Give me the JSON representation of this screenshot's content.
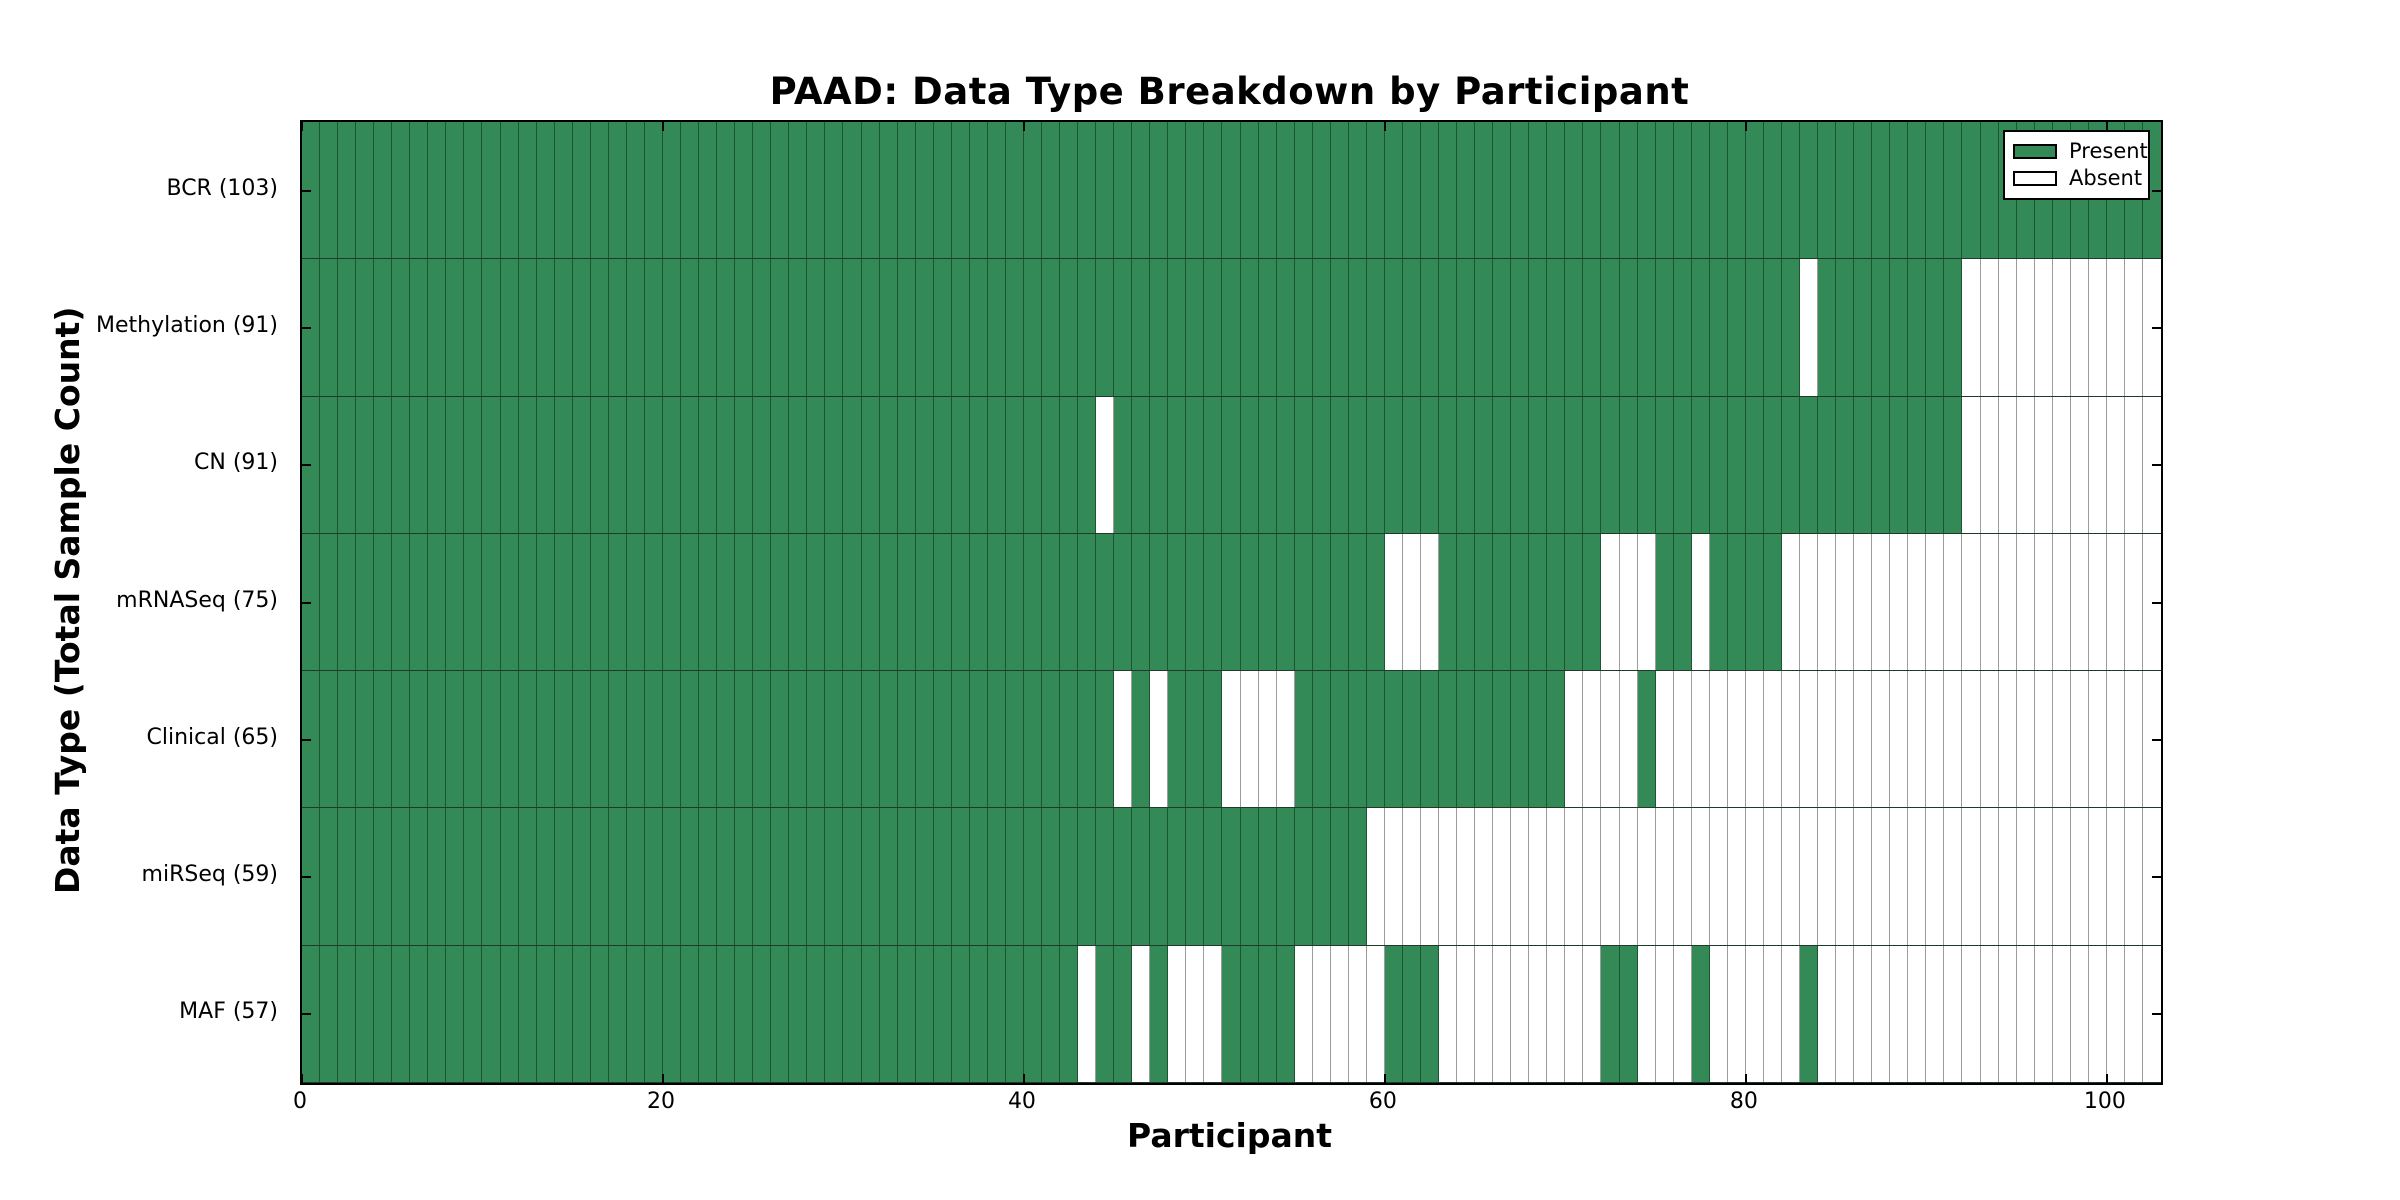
{
  "title": "PAAD: Data Type Breakdown by Participant",
  "xlabel": "Participant",
  "ylabel": "Data Type (Total Sample Count)",
  "legend": {
    "present_label": "Present",
    "absent_label": "Absent"
  },
  "colors": {
    "present": "#338a57",
    "absent": "#ffffff",
    "grid_on_green": "#1d5434",
    "grid_on_white": "#9c9c9c",
    "frame": "#000000"
  },
  "chart_data": {
    "type": "heatmap",
    "x_axis": {
      "label": "Participant",
      "ticks": [
        0,
        20,
        40,
        60,
        80,
        100
      ],
      "range": [
        0,
        103
      ]
    },
    "n_participants": 103,
    "legend_entries": [
      "Present",
      "Absent"
    ],
    "rows": [
      {
        "label": "BCR (103)",
        "count": 103,
        "presence": "1111111111111111111111111111111111111111111111111111111111111111111111111111111111111111111111111111111"
      },
      {
        "label": "Methylation (91)",
        "count": 91,
        "presence": "1111111111111111111111111111111111111111111111111111111111111111111111111111111111101111111100000000000"
      },
      {
        "label": "CN (91)",
        "count": 91,
        "presence": "1111111111111111111111111111111111111111111101111111111111111111111111111111111111111111111100000000000"
      },
      {
        "label": "mRNASeq (75)",
        "count": 75,
        "presence": "1111111111111111111111111111111111111111111111111111111111110001111111110001101111000000000000000000000"
      },
      {
        "label": "Clinical (65)",
        "count": 65,
        "presence": "1111111111111111111111111111111111111111111110101110000111111111111111000010000000000000000000000000000"
      },
      {
        "label": "miRSeq (59)",
        "count": 59,
        "presence": "1111111111111111111111111111111111111111111111111111111111100000000000000000000000000000000000000000000"
      },
      {
        "label": "MAF (57)",
        "count": 57,
        "presence": "1111111111111111111111111111111111111111111011010001111000001110000000001100010000010000000000000000000"
      }
    ]
  }
}
